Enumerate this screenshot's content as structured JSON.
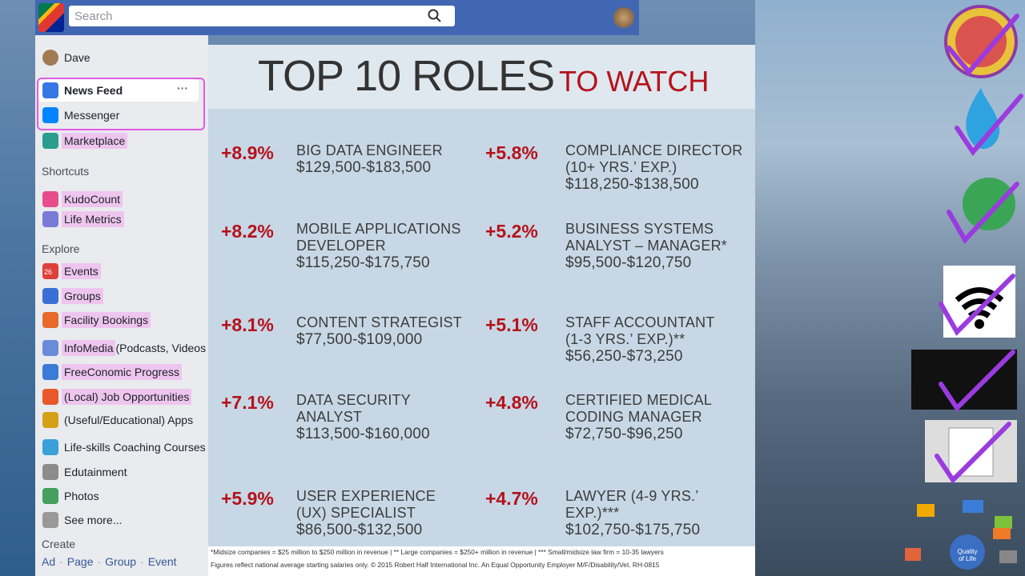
{
  "top_bar": {
    "search_placeholder": "Search"
  },
  "sidebar": {
    "user": "Dave",
    "main": [
      {
        "label": "News Feed",
        "highlighted": false
      },
      {
        "label": "Messenger",
        "highlighted": false
      },
      {
        "label": "Marketplace",
        "highlighted": true
      }
    ],
    "sections": [
      {
        "heading": "Shortcuts",
        "items": [
          {
            "label": "KudoCount",
            "highlighted": true
          },
          {
            "label": "Life Metrics",
            "highlighted": true
          }
        ]
      },
      {
        "heading": "Explore",
        "items": [
          {
            "label": "Events",
            "highlighted": true,
            "badge": "26"
          },
          {
            "label": "Groups",
            "highlighted": true
          },
          {
            "label": "Facility Bookings",
            "highlighted": true
          },
          {
            "label": "InfoMedia",
            "highlighted": true,
            "suffix": "(Podcasts, Videos"
          },
          {
            "label": "FreeConomic Progress",
            "highlighted": true
          },
          {
            "label": "(Local) Job Opportunities",
            "highlighted": true
          },
          {
            "label": "(Useful/Educational) Apps",
            "highlighted": false
          },
          {
            "label": "Life-skills Coaching Courses",
            "highlighted": false
          },
          {
            "label": "Edutainment",
            "highlighted": false
          },
          {
            "label": "Photos",
            "highlighted": false
          },
          {
            "label": "See more...",
            "highlighted": false
          }
        ]
      },
      {
        "heading": "Create",
        "links": [
          "Ad",
          "Page",
          "Group",
          "Event"
        ]
      }
    ]
  },
  "infographic": {
    "title": "TOP 10 ROLES",
    "title_accent": "TO WATCH",
    "roles": [
      {
        "change": "+8.9%",
        "title": [
          "BIG DATA ENGINEER"
        ],
        "salary": "$129,500-$183,500"
      },
      {
        "change": "+5.8%",
        "title": [
          "COMPLIANCE DIRECTOR",
          "(10+ YRS.’ EXP.)"
        ],
        "salary": "$118,250-$138,500"
      },
      {
        "change": "+8.2%",
        "title": [
          "MOBILE APPLICATIONS",
          "DEVELOPER"
        ],
        "salary": "$115,250-$175,750"
      },
      {
        "change": "+5.2%",
        "title": [
          "BUSINESS SYSTEMS",
          "ANALYST – MANAGER*"
        ],
        "salary": "$95,500-$120,750"
      },
      {
        "change": "+8.1%",
        "title": [
          "CONTENT STRATEGIST"
        ],
        "salary": "$77,500-$109,000"
      },
      {
        "change": "+5.1%",
        "title": [
          "STAFF ACCOUNTANT",
          "(1-3 YRS.’ EXP.)**"
        ],
        "salary": "$56,250-$73,250"
      },
      {
        "change": "+7.1%",
        "title": [
          "DATA SECURITY",
          "ANALYST"
        ],
        "salary": "$113,500-$160,000"
      },
      {
        "change": "+4.8%",
        "title": [
          "CERTIFIED MEDICAL",
          "CODING MANAGER"
        ],
        "salary": "$72,750-$96,250"
      },
      {
        "change": "+5.9%",
        "title": [
          "USER EXPERIENCE",
          "(UX) SPECIALIST"
        ],
        "salary": "$86,500-$132,500"
      },
      {
        "change": "+4.7%",
        "title": [
          "LAWYER (4-9 YRS.’ EXP.)***"
        ],
        "salary": "$102,750-$175,750"
      }
    ],
    "footnotes": [
      "*Midsize companies = $25 million to $250 million in revenue | ** Large companies = $250+ million in revenue | *** Small/midsize law firm = 10-35 lawyers",
      "Figures reflect national average starting salaries only. © 2015 Robert Half International Inc. An Equal Opportunity Employer M/F/Disability/Vet. RH-0815"
    ]
  },
  "side_diagram": {
    "center": "Quality of Life"
  }
}
